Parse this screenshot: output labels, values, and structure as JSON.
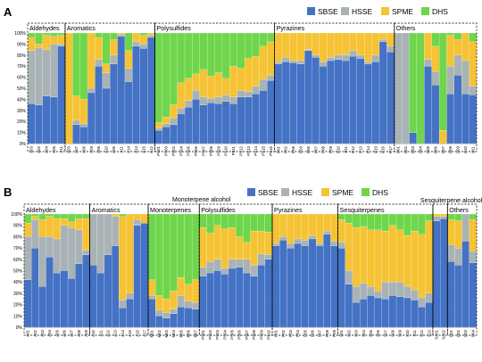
{
  "legend": [
    {
      "name": "SBSE",
      "color": "#4472c4"
    },
    {
      "name": "HSSE",
      "color": "#a9b3b6"
    },
    {
      "name": "SPME",
      "color": "#f5c334"
    },
    {
      "name": "DHS",
      "color": "#6fd64c"
    }
  ],
  "chart_data": [
    {
      "panel": "A",
      "type": "bar",
      "stacked": true,
      "ylim": [
        0,
        100
      ],
      "yticks": [
        "0%",
        "10%",
        "20%",
        "30%",
        "40%",
        "50%",
        "60%",
        "70%",
        "80%",
        "90%",
        "100%"
      ],
      "legend_position": "top-right",
      "groups": [
        {
          "label": "Aldehydes",
          "categories": [
            "A03",
            "A02",
            "A04",
            "A05",
            "A11"
          ]
        },
        {
          "label": "Aromatics",
          "categories": [
            "A03",
            "A07",
            "A06",
            "A09",
            "A08",
            "A10",
            "A05",
            "A11",
            "A14",
            "A13",
            "A15",
            "A12"
          ]
        },
        {
          "label": "Polysulfides",
          "categories": [
            "PS01",
            "PS03",
            "PS02",
            "PS04",
            "PS05",
            "PS06",
            "PS07",
            "PS08",
            "PS09",
            "PS10",
            "PS11",
            "PS12",
            "PS13",
            "PS14",
            "PS15",
            "PS16"
          ]
        },
        {
          "label": "Pyrazines",
          "categories": [
            "P01",
            "P02",
            "P05",
            "P03",
            "P06",
            "P07",
            "P08",
            "P09",
            "P10",
            "P11",
            "P12",
            "P13",
            "P14",
            "P15",
            "P16",
            "P17"
          ]
        },
        {
          "label": "Others",
          "categories": [
            "O01",
            "O02",
            "O03",
            "O04",
            "O05",
            "O06",
            "O07",
            "O08",
            "O09",
            "O10",
            "O11"
          ]
        }
      ],
      "stacks": [
        [
          36,
          48,
          12,
          4
        ],
        [
          35,
          52,
          3,
          10
        ],
        [
          43,
          42,
          13,
          2
        ],
        [
          42,
          48,
          7,
          3
        ],
        [
          88,
          2,
          8,
          2
        ],
        [
          0,
          0,
          100,
          0
        ],
        [
          17,
          4,
          22,
          57
        ],
        [
          15,
          3,
          22,
          60
        ],
        [
          46,
          4,
          50,
          0
        ],
        [
          70,
          6,
          20,
          4
        ],
        [
          50,
          14,
          8,
          28
        ],
        [
          72,
          8,
          14,
          6
        ],
        [
          97,
          2,
          1,
          0
        ],
        [
          56,
          12,
          16,
          16
        ],
        [
          88,
          4,
          8,
          0
        ],
        [
          86,
          4,
          8,
          2
        ],
        [
          96,
          2,
          2,
          0
        ],
        [
          12,
          2,
          5,
          81
        ],
        [
          15,
          3,
          6,
          76
        ],
        [
          17,
          6,
          12,
          65
        ],
        [
          27,
          5,
          23,
          45
        ],
        [
          33,
          6,
          20,
          41
        ],
        [
          40,
          8,
          15,
          37
        ],
        [
          35,
          7,
          25,
          33
        ],
        [
          37,
          4,
          20,
          39
        ],
        [
          36,
          6,
          22,
          36
        ],
        [
          38,
          6,
          15,
          41
        ],
        [
          36,
          6,
          28,
          30
        ],
        [
          42,
          6,
          20,
          32
        ],
        [
          42,
          5,
          30,
          23
        ],
        [
          45,
          7,
          27,
          21
        ],
        [
          48,
          10,
          30,
          12
        ],
        [
          57,
          5,
          30,
          8
        ],
        [
          72,
          2,
          26,
          0
        ],
        [
          74,
          4,
          22,
          0
        ],
        [
          73,
          2,
          25,
          0
        ],
        [
          72,
          3,
          25,
          0
        ],
        [
          84,
          1,
          15,
          0
        ],
        [
          78,
          2,
          20,
          0
        ],
        [
          70,
          4,
          26,
          0
        ],
        [
          75,
          3,
          22,
          0
        ],
        [
          76,
          4,
          20,
          0
        ],
        [
          75,
          5,
          20,
          0
        ],
        [
          79,
          5,
          16,
          0
        ],
        [
          77,
          3,
          20,
          0
        ],
        [
          72,
          2,
          26,
          0
        ],
        [
          74,
          6,
          20,
          0
        ],
        [
          92,
          2,
          6,
          0
        ],
        [
          83,
          5,
          12,
          0
        ],
        [
          0,
          100,
          0,
          0
        ],
        [
          0,
          100,
          0,
          0
        ],
        [
          10,
          0,
          0,
          90
        ],
        [
          0,
          0,
          0,
          100
        ],
        [
          70,
          6,
          24,
          0
        ],
        [
          53,
          12,
          23,
          12
        ],
        [
          0,
          0,
          12,
          88
        ],
        [
          45,
          25,
          28,
          2
        ],
        [
          62,
          18,
          14,
          6
        ],
        [
          45,
          30,
          25,
          0
        ],
        [
          44,
          8,
          40,
          8
        ]
      ]
    },
    {
      "panel": "B",
      "type": "bar",
      "stacked": true,
      "ylim": [
        0,
        100
      ],
      "yticks": [
        "0%",
        "10%",
        "20%",
        "30%",
        "40%",
        "50%",
        "60%",
        "70%",
        "80%",
        "90%",
        "100%"
      ],
      "legend_position": "top-center",
      "groups": [
        {
          "label": "Aldehydes",
          "categories": [
            "A01",
            "A02",
            "A03",
            "A04",
            "A05",
            "A06",
            "A07",
            "A08",
            "A09"
          ]
        },
        {
          "label": "Aromatics",
          "categories": [
            "A10",
            "A11",
            "A12",
            "A13",
            "A14",
            "A15",
            "A16",
            "A17"
          ]
        },
        {
          "label": "Monoterpenes",
          "categories": [
            "M01",
            "M02",
            "M03",
            "M04",
            "M05",
            "M06",
            "M07"
          ]
        },
        {
          "label": "Polysulfides",
          "categories": [
            "PS01",
            "PS02",
            "PS03",
            "PS04",
            "PS05",
            "PS06",
            "PS07",
            "PS08",
            "PS09",
            "PS10"
          ]
        },
        {
          "label": "Pyrazines",
          "categories": [
            "P01",
            "P02",
            "P03",
            "P04",
            "P05",
            "P06",
            "P07",
            "P08",
            "P09"
          ]
        },
        {
          "label": "Sesquiterpenes",
          "categories": [
            "S01",
            "S02",
            "S03",
            "S04",
            "S05",
            "S06",
            "S07",
            "S08",
            "S09",
            "S10",
            "S11",
            "S12",
            "S13"
          ]
        },
        {
          "label": "Sesquiterpene alcohols",
          "categories": [
            "SA01",
            "SA02"
          ]
        },
        {
          "label": "Others",
          "categories": [
            "O01",
            "O02",
            "O03",
            "O04"
          ]
        }
      ],
      "annotation": "Monoterpene alcohol",
      "stacks": [
        [
          42,
          38,
          12,
          8
        ],
        [
          70,
          25,
          3,
          2
        ],
        [
          36,
          44,
          15,
          5
        ],
        [
          62,
          18,
          18,
          2
        ],
        [
          48,
          30,
          18,
          4
        ],
        [
          50,
          40,
          6,
          4
        ],
        [
          43,
          45,
          5,
          7
        ],
        [
          56,
          30,
          10,
          4
        ],
        [
          64,
          4,
          28,
          4
        ],
        [
          55,
          45,
          0,
          0
        ],
        [
          48,
          52,
          0,
          0
        ],
        [
          64,
          36,
          0,
          0
        ],
        [
          72,
          26,
          2,
          0
        ],
        [
          17,
          7,
          74,
          2
        ],
        [
          25,
          5,
          70,
          0
        ],
        [
          90,
          5,
          5,
          0
        ],
        [
          92,
          0,
          8,
          0
        ],
        [
          25,
          3,
          14,
          58
        ],
        [
          10,
          5,
          13,
          72
        ],
        [
          8,
          5,
          12,
          75
        ],
        [
          12,
          4,
          16,
          68
        ],
        [
          18,
          10,
          16,
          56
        ],
        [
          17,
          6,
          15,
          62
        ],
        [
          16,
          6,
          20,
          58
        ],
        [
          45,
          8,
          35,
          12
        ],
        [
          48,
          10,
          25,
          17
        ],
        [
          50,
          10,
          30,
          10
        ],
        [
          47,
          5,
          35,
          13
        ],
        [
          52,
          8,
          28,
          12
        ],
        [
          53,
          7,
          20,
          20
        ],
        [
          48,
          12,
          15,
          25
        ],
        [
          45,
          10,
          30,
          15
        ],
        [
          55,
          10,
          20,
          15
        ],
        [
          60,
          4,
          20,
          16
        ],
        [
          72,
          2,
          26,
          0
        ],
        [
          77,
          3,
          20,
          0
        ],
        [
          70,
          4,
          26,
          0
        ],
        [
          74,
          4,
          22,
          0
        ],
        [
          72,
          5,
          23,
          0
        ],
        [
          78,
          3,
          19,
          0
        ],
        [
          72,
          2,
          26,
          0
        ],
        [
          82,
          3,
          15,
          0
        ],
        [
          72,
          4,
          24,
          0
        ],
        [
          70,
          5,
          20,
          5
        ],
        [
          38,
          12,
          42,
          8
        ],
        [
          22,
          14,
          52,
          12
        ],
        [
          25,
          14,
          50,
          11
        ],
        [
          28,
          8,
          50,
          14
        ],
        [
          26,
          6,
          54,
          14
        ],
        [
          25,
          15,
          45,
          15
        ],
        [
          28,
          12,
          50,
          10
        ],
        [
          27,
          13,
          46,
          14
        ],
        [
          26,
          10,
          45,
          19
        ],
        [
          24,
          9,
          52,
          15
        ],
        [
          18,
          8,
          56,
          18
        ],
        [
          22,
          8,
          64,
          6
        ],
        [
          94,
          4,
          2,
          0
        ],
        [
          96,
          2,
          2,
          0
        ],
        [
          58,
          15,
          22,
          5
        ],
        [
          55,
          15,
          24,
          6
        ],
        [
          76,
          24,
          0,
          0
        ],
        [
          57,
          10,
          28,
          5
        ]
      ]
    }
  ]
}
